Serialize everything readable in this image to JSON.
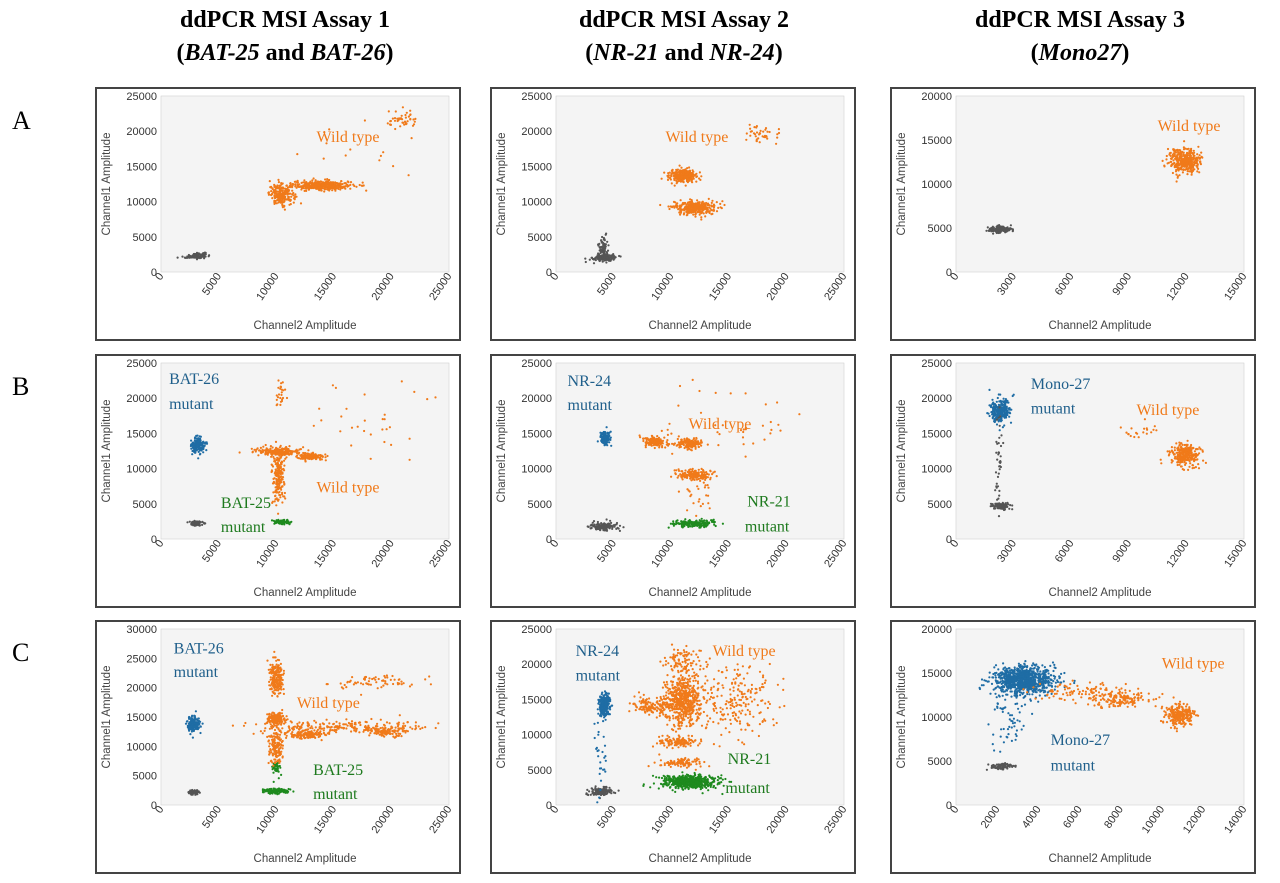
{
  "columns": [
    {
      "title_line1": "ddPCR MSI Assay 1",
      "line2_pre": "(",
      "line2_gene1": "BAT-25",
      "line2_mid": " and ",
      "line2_gene2": "BAT-26",
      "line2_post": ")"
    },
    {
      "title_line1": "ddPCR MSI Assay 2",
      "line2_pre": "(",
      "line2_gene1": "NR-21",
      "line2_mid": " and ",
      "line2_gene2": "NR-24",
      "line2_post": ")"
    },
    {
      "title_line1": "ddPCR MSI Assay 3",
      "line2_pre": "(",
      "line2_gene1": "Mono27",
      "line2_mid": "",
      "line2_gene2": "",
      "line2_post": ")"
    }
  ],
  "rows": [
    "A",
    "B",
    "C"
  ],
  "colors": {
    "wild_type": "#f07a1a",
    "mutant_blue": "#1f6da5",
    "mutant_green": "#1e8a1e",
    "negative": "#555555",
    "plot_bg": "#f4f4f4",
    "label_blue": "#1f5f8b",
    "label_green": "#1e7a1e"
  },
  "chart_data": [
    {
      "id": "A1",
      "type": "scatter",
      "xlabel": "Channel2 Amplitude",
      "ylabel": "Channel1 Amplitude",
      "xlim": [
        0,
        25000
      ],
      "ylim": [
        0,
        25000
      ],
      "xticks": [
        "0",
        "5000",
        "10000",
        "15000",
        "20000",
        "25000"
      ],
      "yticks": [
        "0",
        "5000",
        "10000",
        "15000",
        "20000",
        "25000"
      ],
      "clusters": [
        {
          "color": "negative",
          "x": 3000,
          "y": 2300,
          "sx": 450,
          "sy": 180,
          "n": 120,
          "rot": 0.2
        },
        {
          "color": "wild_type",
          "x": 10500,
          "y": 11000,
          "sx": 550,
          "sy": 700,
          "n": 220
        },
        {
          "color": "wild_type",
          "x": 14000,
          "y": 12300,
          "sx": 1300,
          "sy": 350,
          "n": 380
        },
        {
          "color": "wild_type",
          "x": 21000,
          "y": 21500,
          "sx": 700,
          "sy": 600,
          "n": 45
        },
        {
          "color": "wild_type",
          "x": 17000,
          "y": 16000,
          "sx": 3000,
          "sy": 3000,
          "n": 15
        }
      ],
      "labels": [
        {
          "text": "Wild type",
          "x": 13500,
          "y": 18500,
          "color": "wild_type"
        }
      ]
    },
    {
      "id": "A2",
      "type": "scatter",
      "xlabel": "Channel2 Amplitude",
      "ylabel": "Channel1 Amplitude",
      "xlim": [
        0,
        25000
      ],
      "ylim": [
        0,
        25000
      ],
      "xticks": [
        "0",
        "5000",
        "10000",
        "15000",
        "20000",
        "25000"
      ],
      "yticks": [
        "0",
        "5000",
        "10000",
        "15000",
        "20000",
        "25000"
      ],
      "clusters": [
        {
          "color": "negative",
          "x": 4200,
          "y": 2000,
          "sx": 500,
          "sy": 250,
          "n": 150
        },
        {
          "color": "negative",
          "x": 4100,
          "y": 3300,
          "sx": 200,
          "sy": 800,
          "n": 90
        },
        {
          "color": "wild_type",
          "x": 11000,
          "y": 13700,
          "sx": 600,
          "sy": 450,
          "n": 280
        },
        {
          "color": "wild_type",
          "x": 12000,
          "y": 9100,
          "sx": 900,
          "sy": 450,
          "n": 320
        },
        {
          "color": "wild_type",
          "x": 18000,
          "y": 19500,
          "sx": 900,
          "sy": 800,
          "n": 40
        }
      ],
      "labels": [
        {
          "text": "Wild type",
          "x": 9500,
          "y": 18500,
          "color": "wild_type"
        }
      ]
    },
    {
      "id": "A3",
      "type": "scatter",
      "xlabel": "Channel2 Amplitude",
      "ylabel": "Channel1 Amplitude",
      "xlim": [
        0,
        15000
      ],
      "ylim": [
        0,
        20000
      ],
      "xticks": [
        "0",
        "3000",
        "6000",
        "9000",
        "12000",
        "15000"
      ],
      "yticks": [
        "0",
        "5000",
        "10000",
        "15000",
        "20000"
      ],
      "clusters": [
        {
          "color": "negative",
          "x": 2300,
          "y": 4800,
          "sx": 300,
          "sy": 200,
          "n": 150
        },
        {
          "color": "wild_type",
          "x": 11900,
          "y": 12600,
          "sx": 400,
          "sy": 700,
          "n": 380
        }
      ],
      "labels": [
        {
          "text": "Wild type",
          "x": 10500,
          "y": 16000,
          "color": "wild_type"
        }
      ]
    },
    {
      "id": "B1",
      "type": "scatter",
      "xlabel": "Channel2 Amplitude",
      "ylabel": "Channel1 Amplitude",
      "xlim": [
        0,
        25000
      ],
      "ylim": [
        0,
        25000
      ],
      "xticks": [
        "0",
        "5000",
        "10000",
        "15000",
        "20000",
        "25000"
      ],
      "yticks": [
        "0",
        "5000",
        "10000",
        "15000",
        "20000",
        "25000"
      ],
      "clusters": [
        {
          "color": "negative",
          "x": 3000,
          "y": 2200,
          "sx": 300,
          "sy": 180,
          "n": 80
        },
        {
          "color": "mutant_blue",
          "x": 3200,
          "y": 13300,
          "sx": 300,
          "sy": 550,
          "n": 180
        },
        {
          "color": "mutant_green",
          "x": 10500,
          "y": 2400,
          "sx": 350,
          "sy": 150,
          "n": 100
        },
        {
          "color": "wild_type",
          "x": 10200,
          "y": 9000,
          "sx": 250,
          "sy": 2000,
          "n": 200
        },
        {
          "color": "wild_type",
          "x": 10000,
          "y": 12400,
          "sx": 1000,
          "sy": 300,
          "n": 200
        },
        {
          "color": "wild_type",
          "x": 13000,
          "y": 11700,
          "sx": 600,
          "sy": 250,
          "n": 130
        },
        {
          "color": "wild_type",
          "x": 10300,
          "y": 20500,
          "sx": 250,
          "sy": 1200,
          "n": 25
        },
        {
          "color": "wild_type",
          "x": 17000,
          "y": 17000,
          "sx": 3000,
          "sy": 2500,
          "n": 30
        }
      ],
      "labels": [
        {
          "text": "BAT-26",
          "x": 700,
          "y": 22000,
          "color": "label_blue"
        },
        {
          "text": "mutant",
          "x": 700,
          "y": 18500,
          "color": "label_blue"
        },
        {
          "text": "BAT-25",
          "x": 5200,
          "y": 4400,
          "color": "label_green"
        },
        {
          "text": "mutant",
          "x": 5200,
          "y": 1000,
          "color": "label_green"
        },
        {
          "text": "Wild type",
          "x": 13500,
          "y": 6600,
          "color": "wild_type"
        }
      ]
    },
    {
      "id": "B2",
      "type": "scatter",
      "xlabel": "Channel2 Amplitude",
      "ylabel": "Channel1 Amplitude",
      "xlim": [
        0,
        25000
      ],
      "ylim": [
        0,
        25000
      ],
      "xticks": [
        "0",
        "5000",
        "10000",
        "15000",
        "20000",
        "25000"
      ],
      "yticks": [
        "0",
        "5000",
        "10000",
        "15000",
        "20000",
        "25000"
      ],
      "clusters": [
        {
          "color": "negative",
          "x": 4100,
          "y": 1800,
          "sx": 600,
          "sy": 300,
          "n": 150
        },
        {
          "color": "mutant_blue",
          "x": 4200,
          "y": 14300,
          "sx": 200,
          "sy": 500,
          "n": 150
        },
        {
          "color": "mutant_green",
          "x": 12000,
          "y": 2200,
          "sx": 900,
          "sy": 250,
          "n": 180
        },
        {
          "color": "wild_type",
          "x": 8500,
          "y": 13800,
          "sx": 500,
          "sy": 350,
          "n": 150
        },
        {
          "color": "wild_type",
          "x": 11500,
          "y": 13600,
          "sx": 500,
          "sy": 400,
          "n": 150
        },
        {
          "color": "wild_type",
          "x": 12000,
          "y": 9100,
          "sx": 800,
          "sy": 350,
          "n": 180
        },
        {
          "color": "wild_type",
          "x": 12500,
          "y": 6000,
          "sx": 700,
          "sy": 1500,
          "n": 25
        },
        {
          "color": "wild_type",
          "x": 16000,
          "y": 17000,
          "sx": 3000,
          "sy": 2500,
          "n": 40
        }
      ],
      "labels": [
        {
          "text": "NR-24",
          "x": 1000,
          "y": 21700,
          "color": "label_blue"
        },
        {
          "text": "NR-21",
          "x": 16600,
          "y": 4600,
          "color": "label_green"
        },
        {
          "text": "mutant",
          "x": 1000,
          "y": 18300,
          "color": "label_blue"
        },
        {
          "text": "mutant",
          "x": 16400,
          "y": 1100,
          "color": "label_green"
        },
        {
          "text": "Wild type",
          "x": 11500,
          "y": 15600,
          "color": "wild_type"
        }
      ]
    },
    {
      "id": "B3",
      "type": "scatter",
      "xlabel": "Channel2 Amplitude",
      "ylabel": "Channel1 Amplitude",
      "xlim": [
        0,
        15000
      ],
      "ylim": [
        0,
        25000
      ],
      "xticks": [
        "0",
        "3000",
        "6000",
        "9000",
        "12000",
        "15000"
      ],
      "yticks": [
        "0",
        "5000",
        "10000",
        "15000",
        "20000",
        "25000"
      ],
      "clusters": [
        {
          "color": "negative",
          "x": 2300,
          "y": 4700,
          "sx": 250,
          "sy": 250,
          "n": 100
        },
        {
          "color": "mutant_blue",
          "x": 2300,
          "y": 18300,
          "sx": 250,
          "sy": 800,
          "n": 250
        },
        {
          "color": "negative",
          "x": 2200,
          "y": 11000,
          "sx": 100,
          "sy": 3500,
          "n": 40
        },
        {
          "color": "wild_type",
          "x": 11900,
          "y": 12000,
          "sx": 350,
          "sy": 800,
          "n": 280
        },
        {
          "color": "wild_type",
          "x": 9500,
          "y": 15000,
          "sx": 700,
          "sy": 900,
          "n": 20
        }
      ],
      "labels": [
        {
          "text": "Mono-27",
          "x": 3900,
          "y": 21300,
          "color": "label_blue"
        },
        {
          "text": "mutant",
          "x": 3900,
          "y": 17800,
          "color": "label_blue"
        },
        {
          "text": "Wild type",
          "x": 9400,
          "y": 17600,
          "color": "wild_type"
        }
      ]
    },
    {
      "id": "C1",
      "type": "scatter",
      "xlabel": "Channel2 Amplitude",
      "ylabel": "Channel1 Amplitude",
      "xlim": [
        0,
        25000
      ],
      "ylim": [
        0,
        30000
      ],
      "xticks": [
        "0",
        "5000",
        "10000",
        "15000",
        "20000",
        "25000"
      ],
      "yticks": [
        "0",
        "5000",
        "10000",
        "15000",
        "20000",
        "25000",
        "30000"
      ],
      "clusters": [
        {
          "color": "negative",
          "x": 2800,
          "y": 2200,
          "sx": 250,
          "sy": 200,
          "n": 80
        },
        {
          "color": "mutant_blue",
          "x": 2800,
          "y": 13800,
          "sx": 250,
          "sy": 550,
          "n": 200
        },
        {
          "color": "mutant_green",
          "x": 10000,
          "y": 2400,
          "sx": 500,
          "sy": 200,
          "n": 130
        },
        {
          "color": "mutant_green",
          "x": 10000,
          "y": 6200,
          "sx": 150,
          "sy": 700,
          "n": 40
        },
        {
          "color": "wild_type",
          "x": 10000,
          "y": 21500,
          "sx": 300,
          "sy": 1500,
          "n": 200
        },
        {
          "color": "wild_type",
          "x": 10000,
          "y": 14800,
          "sx": 400,
          "sy": 450,
          "n": 180
        },
        {
          "color": "wild_type",
          "x": 10000,
          "y": 10000,
          "sx": 300,
          "sy": 1500,
          "n": 150
        },
        {
          "color": "wild_type",
          "x": 12500,
          "y": 12000,
          "sx": 900,
          "sy": 350,
          "n": 130
        },
        {
          "color": "wild_type",
          "x": 15500,
          "y": 13300,
          "sx": 3500,
          "sy": 600,
          "n": 220
        },
        {
          "color": "wild_type",
          "x": 19500,
          "y": 12500,
          "sx": 1000,
          "sy": 400,
          "n": 100
        },
        {
          "color": "wild_type",
          "x": 18500,
          "y": 21000,
          "sx": 2000,
          "sy": 600,
          "n": 70
        }
      ],
      "labels": [
        {
          "text": "BAT-26",
          "x": 1100,
          "y": 25800,
          "color": "label_blue"
        },
        {
          "text": "mutant",
          "x": 1100,
          "y": 21800,
          "color": "label_blue"
        },
        {
          "text": "Wild type",
          "x": 11800,
          "y": 16500,
          "color": "wild_type"
        },
        {
          "text": "BAT-25",
          "x": 13200,
          "y": 5100,
          "color": "label_green"
        },
        {
          "text": "mutant",
          "x": 13200,
          "y": 1000,
          "color": "label_green"
        }
      ]
    },
    {
      "id": "C2",
      "type": "scatter",
      "xlabel": "Channel2 Amplitude",
      "ylabel": "Channel1 Amplitude",
      "xlim": [
        0,
        25000
      ],
      "ylim": [
        0,
        25000
      ],
      "xticks": [
        "0",
        "5000",
        "10000",
        "15000",
        "20000",
        "25000"
      ],
      "yticks": [
        "0",
        "5000",
        "10000",
        "15000",
        "20000",
        "25000"
      ],
      "clusters": [
        {
          "color": "negative",
          "x": 4000,
          "y": 1900,
          "sx": 500,
          "sy": 300,
          "n": 130
        },
        {
          "color": "mutant_blue",
          "x": 4200,
          "y": 14200,
          "sx": 250,
          "sy": 800,
          "n": 260
        },
        {
          "color": "mutant_blue",
          "x": 4000,
          "y": 8000,
          "sx": 300,
          "sy": 3500,
          "n": 30
        },
        {
          "color": "mutant_green",
          "x": 11500,
          "y": 3300,
          "sx": 1200,
          "sy": 500,
          "n": 550
        },
        {
          "color": "wild_type",
          "x": 11000,
          "y": 14800,
          "sx": 800,
          "sy": 1800,
          "n": 550
        },
        {
          "color": "wild_type",
          "x": 8500,
          "y": 14000,
          "sx": 1000,
          "sy": 700,
          "n": 150
        },
        {
          "color": "wild_type",
          "x": 10500,
          "y": 9000,
          "sx": 900,
          "sy": 350,
          "n": 130
        },
        {
          "color": "wild_type",
          "x": 11000,
          "y": 6000,
          "sx": 1000,
          "sy": 350,
          "n": 100
        },
        {
          "color": "wild_type",
          "x": 15500,
          "y": 15000,
          "sx": 2000,
          "sy": 2500,
          "n": 220
        },
        {
          "color": "wild_type",
          "x": 11000,
          "y": 20500,
          "sx": 800,
          "sy": 800,
          "n": 90
        }
      ],
      "labels": [
        {
          "text": "NR-24",
          "x": 1700,
          "y": 21200,
          "color": "label_blue"
        },
        {
          "text": "mutant",
          "x": 1700,
          "y": 17700,
          "color": "label_blue"
        },
        {
          "text": "Wild type",
          "x": 13600,
          "y": 21200,
          "color": "wild_type"
        },
        {
          "text": "NR-21",
          "x": 14900,
          "y": 5800,
          "color": "label_green"
        },
        {
          "text": "mutant",
          "x": 14700,
          "y": 1700,
          "color": "label_green"
        }
      ]
    },
    {
      "id": "C3",
      "type": "scatter",
      "xlabel": "Channel2 Amplitude",
      "ylabel": "Channel1 Amplitude",
      "xlim": [
        0,
        14000
      ],
      "ylim": [
        0,
        20000
      ],
      "xticks": [
        "0",
        "2000",
        "4000",
        "6000",
        "8000",
        "10000",
        "12000",
        "14000"
      ],
      "yticks": [
        "0",
        "5000",
        "10000",
        "15000",
        "20000"
      ],
      "clusters": [
        {
          "color": "negative",
          "x": 2200,
          "y": 4400,
          "sx": 250,
          "sy": 200,
          "n": 100
        },
        {
          "color": "mutant_blue",
          "x": 3300,
          "y": 14200,
          "sx": 700,
          "sy": 800,
          "n": 900
        },
        {
          "color": "mutant_blue",
          "x": 2500,
          "y": 10000,
          "sx": 400,
          "sy": 1800,
          "n": 60
        },
        {
          "color": "wild_type",
          "x": 10900,
          "y": 10200,
          "sx": 350,
          "sy": 600,
          "n": 250
        },
        {
          "color": "wild_type",
          "x": 8000,
          "y": 12000,
          "sx": 700,
          "sy": 500,
          "n": 150
        },
        {
          "color": "wild_type",
          "x": 6000,
          "y": 12800,
          "sx": 1200,
          "sy": 600,
          "n": 90
        }
      ],
      "labels": [
        {
          "text": "Mono-27",
          "x": 4600,
          "y": 6800,
          "color": "label_blue"
        },
        {
          "text": "mutant",
          "x": 4600,
          "y": 3900,
          "color": "label_blue"
        },
        {
          "text": "Wild type",
          "x": 10000,
          "y": 15500,
          "color": "wild_type"
        }
      ]
    }
  ]
}
